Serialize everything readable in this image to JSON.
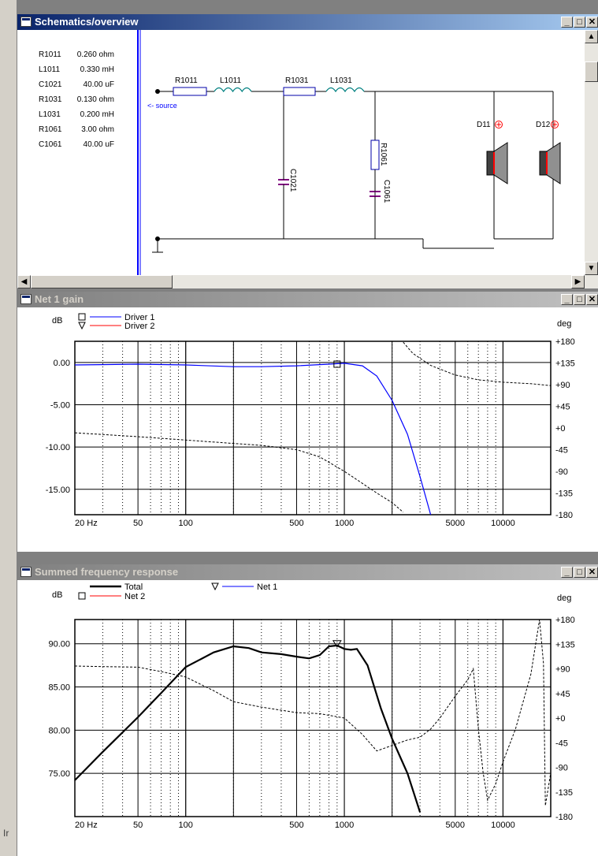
{
  "windows": {
    "schematics": {
      "title": "Schematics/overview"
    },
    "gain": {
      "title": "Net 1 gain"
    },
    "summed": {
      "title": "Summed frequency response"
    }
  },
  "window_buttons": {
    "minimize": "_",
    "maximize": "□",
    "close": "✕"
  },
  "schematic": {
    "parts_list": [
      {
        "name": "R1011",
        "value": "0.260 ohm"
      },
      {
        "name": "L1011",
        "value": "0.330 mH"
      },
      {
        "name": "C1021",
        "value": "40.00 uF"
      },
      {
        "name": "R1031",
        "value": "0.130 ohm"
      },
      {
        "name": "L1031",
        "value": "0.200 mH"
      },
      {
        "name": "R1061",
        "value": "3.00 ohm"
      },
      {
        "name": "C1061",
        "value": "40.00 uF"
      }
    ],
    "labels": {
      "r1011": "R1011",
      "l1011": "L1011",
      "r1031": "R1031",
      "l1031": "L1031",
      "c1021": "C1021",
      "r1061": "R1061",
      "c1061": "C1061",
      "source": "<- source",
      "d11": "D11",
      "d12": "D12"
    }
  },
  "colors": {
    "driver1": "#0000ff",
    "driver2": "#ff0000",
    "total": "#000000"
  },
  "chart_data": [
    {
      "type": "line",
      "title": "Net 1 gain",
      "ylabel": "dB",
      "y2label": "deg",
      "x_scale": "log",
      "xlim": [
        20,
        20000
      ],
      "ylim": [
        -18,
        2.5
      ],
      "y2lim": [
        -180,
        180
      ],
      "x_ticks": [
        "20 Hz",
        "50",
        "100",
        "500",
        "1000",
        "5000",
        "10000"
      ],
      "y_ticks": [
        "0.00",
        "-5.00",
        "-10.00",
        "-15.00"
      ],
      "y2_ticks": [
        "+180",
        "+135",
        "+90",
        "+45",
        "+0",
        "-45",
        "-90",
        "-135",
        "-180"
      ],
      "legend": [
        {
          "marker": "square",
          "name": "Driver 1",
          "color": "#0000ff"
        },
        {
          "marker": "triangle",
          "name": "Driver 2",
          "color": "#ff0000"
        }
      ],
      "series": [
        {
          "name": "Driver 1",
          "axis": "left",
          "x": [
            20,
            50,
            100,
            200,
            300,
            500,
            800,
            1000,
            1300,
            1600,
            2000,
            2500,
            3000,
            3500
          ],
          "y": [
            -0.3,
            -0.2,
            -0.3,
            -0.5,
            -0.5,
            -0.4,
            -0.2,
            -0.1,
            -0.4,
            -1.6,
            -4.5,
            -8.5,
            -13.5,
            -18
          ]
        },
        {
          "name": "Driver 1 phase",
          "axis": "right",
          "style": "dashed",
          "x": [
            20,
            50,
            100,
            200,
            300,
            500,
            700,
            1000,
            1300,
            1600,
            2000,
            2350
          ],
          "y": [
            -10,
            -18,
            -25,
            -32,
            -36,
            -45,
            -60,
            -90,
            -115,
            -135,
            -155,
            -175
          ]
        },
        {
          "name": "Driver 1 phase wrap",
          "axis": "right",
          "style": "dashed",
          "x": [
            2350,
            2700,
            3500,
            5000,
            7000,
            10000,
            15000,
            20000
          ],
          "y": [
            178,
            155,
            130,
            110,
            100,
            95,
            92,
            88
          ]
        }
      ]
    },
    {
      "type": "line",
      "title": "Summed frequency response",
      "ylabel": "dB",
      "y2label": "deg",
      "x_scale": "log",
      "xlim": [
        20,
        20000
      ],
      "ylim": [
        70,
        92.8
      ],
      "y2lim": [
        -180,
        180
      ],
      "x_ticks": [
        "20 Hz",
        "50",
        "100",
        "500",
        "1000",
        "5000",
        "10000"
      ],
      "y_ticks": [
        "90.00",
        "85.00",
        "80.00",
        "75.00"
      ],
      "y2_ticks": [
        "+180",
        "+135",
        "+90",
        "+45",
        "+0",
        "-45",
        "-90",
        "-135",
        "-180"
      ],
      "legend": [
        {
          "marker": "none",
          "name": "Total",
          "color": "#000000"
        },
        {
          "marker": "triangle",
          "name": "Net 1",
          "color": "#0000ff"
        },
        {
          "marker": "square",
          "name": "Net 2",
          "color": "#ff0000"
        }
      ],
      "series": [
        {
          "name": "Total",
          "axis": "left",
          "x": [
            20,
            30,
            50,
            70,
            100,
            150,
            200,
            250,
            300,
            400,
            500,
            600,
            700,
            800,
            900,
            1000,
            1100,
            1200,
            1400,
            1700,
            2000,
            2500,
            3000
          ],
          "y": [
            74.2,
            77.5,
            81.5,
            84.3,
            87.3,
            89.0,
            89.7,
            89.5,
            89.0,
            88.8,
            88.5,
            88.3,
            88.7,
            89.7,
            89.8,
            89.4,
            89.3,
            89.4,
            87.5,
            82.5,
            79.0,
            75.0,
            70.5
          ]
        },
        {
          "name": "Total phase",
          "axis": "right",
          "style": "dashed",
          "x": [
            20,
            30,
            50,
            70,
            100,
            150,
            200,
            300,
            500,
            700,
            1000,
            1300,
            1600,
            2000,
            2500,
            3000,
            3500,
            4000,
            5000,
            6000,
            6500,
            7000,
            7500,
            8000,
            9000,
            10000,
            12000,
            15000,
            17000,
            18000,
            18500,
            20000
          ],
          "y": [
            95,
            94,
            93,
            85,
            75,
            50,
            30,
            20,
            10,
            8,
            0,
            -30,
            -60,
            -50,
            -40,
            -35,
            -20,
            0,
            40,
            70,
            90,
            -20,
            -100,
            -150,
            -120,
            -80,
            -20,
            80,
            180,
            100,
            -160,
            -100
          ]
        }
      ]
    }
  ]
}
